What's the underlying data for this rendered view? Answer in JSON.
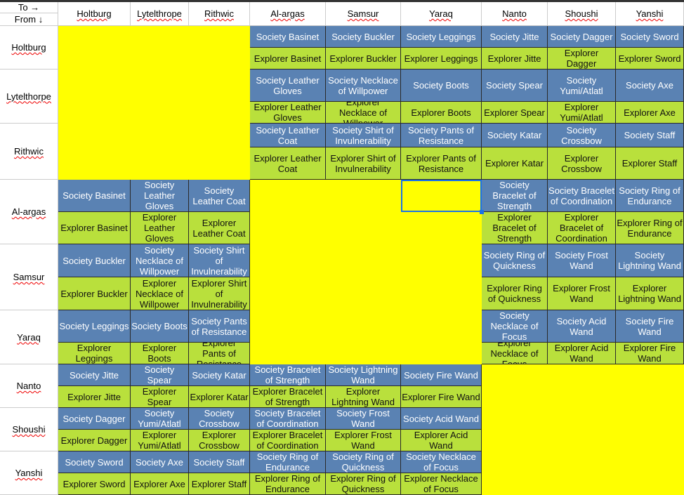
{
  "corner": {
    "to": "To →",
    "from": "From ↓"
  },
  "columns": [
    "Holtburg",
    "Lytelthrope",
    "Rithwic",
    "Al-argas",
    "Samsur",
    "Yaraq",
    "Nanto",
    "Shoushi",
    "Yanshi"
  ],
  "rows": [
    {
      "name": "Holtburg",
      "cells": [
        [
          null,
          null,
          null,
          "Society Basinet",
          "Society Buckler",
          "Society Leggings",
          "Society Jitte",
          "Society Dagger",
          "Society Sword"
        ],
        [
          null,
          null,
          null,
          "Explorer Basinet",
          "Explorer Buckler",
          "Explorer Leggings",
          "Explorer Jitte",
          "Explorer Dagger",
          "Explorer Sword"
        ]
      ]
    },
    {
      "name": "Lytelthorpe",
      "cells": [
        [
          null,
          null,
          null,
          "Society Leather Gloves",
          "Society Necklace of Willpower",
          "Society Boots",
          "Society Spear",
          "Society Yumi/Atlatl",
          "Society Axe"
        ],
        [
          null,
          null,
          null,
          "Explorer Leather Gloves",
          "Explorer Necklace of Willpower",
          "Explorer Boots",
          "Explorer Spear",
          "Explorer Yumi/Atlatl",
          "Explorer Axe"
        ]
      ]
    },
    {
      "name": "Rithwic",
      "cells": [
        [
          null,
          null,
          null,
          "Society Leather Coat",
          "Society Shirt of Invulnerability",
          "Society Pants of Resistance",
          "Society Katar",
          "Society Crossbow",
          "Society Staff"
        ],
        [
          null,
          null,
          null,
          "Explorer Leather Coat",
          "Explorer Shirt of Invulnerability",
          "Explorer Pants of Resistance",
          "Explorer Katar",
          "Explorer Crossbow",
          "Explorer Staff"
        ]
      ]
    },
    {
      "name": "Al-argas",
      "cells": [
        [
          "Society Basinet",
          "Society Leather Gloves",
          "Society Leather Coat",
          null,
          null,
          null,
          "Society Bracelet of Strength",
          "Society Bracelet of Coordination",
          "Society Ring of Endurance"
        ],
        [
          "Explorer Basinet",
          "Explorer Leather Gloves",
          "Explorer Leather Coat",
          null,
          null,
          null,
          "Explorer Bracelet of Strength",
          "Explorer Bracelet of Coordination",
          "Explorer Ring of Endurance"
        ]
      ]
    },
    {
      "name": "Samsur",
      "cells": [
        [
          "Society Buckler",
          "Society Necklace of Willpower",
          "Society Shirt of Invulnerability",
          null,
          null,
          null,
          "Society Ring of Quickness",
          "Society Frost Wand",
          "Society Lightning Wand"
        ],
        [
          "Explorer Buckler",
          "Explorer Necklace of Willpower",
          "Explorer Shirt of Invulnerability",
          null,
          null,
          null,
          "Explorer Ring of Quickness",
          "Explorer Frost Wand",
          "Explorer Lightning Wand"
        ]
      ]
    },
    {
      "name": "Yaraq",
      "cells": [
        [
          "Society Leggings",
          "Society Boots",
          "Society Pants of Resistance",
          null,
          null,
          null,
          "Society Necklace of Focus",
          "Society Acid Wand",
          "Society Fire Wand"
        ],
        [
          "Explorer Leggings",
          "Explorer Boots",
          "Explorer Pants of Resistance",
          null,
          null,
          null,
          "Explorer Necklace of Focus",
          "Explorer Acid Wand",
          "Explorer Fire Wand"
        ]
      ]
    },
    {
      "name": "Nanto",
      "cells": [
        [
          "Society Jitte",
          "Society Spear",
          "Society Katar",
          "Society Bracelet of Strength",
          "Society Lightning Wand",
          "Society Fire Wand",
          null,
          null,
          null
        ],
        [
          "Explorer Jitte",
          "Explorer Spear",
          "Explorer Katar",
          "Explorer Bracelet of Strength",
          "Explorer Lightning Wand",
          "Explorer Fire Wand",
          null,
          null,
          null
        ]
      ]
    },
    {
      "name": "Shoushi",
      "cells": [
        [
          "Society Dagger",
          "Society Yumi/Atlatl",
          "Society Crossbow",
          "Society Bracelet of Coordination",
          "Society Frost Wand",
          "Society Acid Wand",
          null,
          null,
          null
        ],
        [
          "Explorer Dagger",
          "Explorer Yumi/Atlatl",
          "Explorer Crossbow",
          "Explorer Bracelet of Coordination",
          "Explorer Frost Wand",
          "Explorer Acid Wand",
          null,
          null,
          null
        ]
      ]
    },
    {
      "name": "Yanshi",
      "cells": [
        [
          "Society Sword",
          "Society Axe",
          "Society Staff",
          "Society Ring of Endurance",
          "Society Ring of Quickness",
          "Society Necklace of Focus",
          null,
          null,
          null
        ],
        [
          "Explorer Sword",
          "Explorer Axe",
          "Explorer Staff",
          "Explorer Ring of Endurance",
          "Explorer Ring of Quickness",
          "Explorer Necklace of Focus",
          null,
          null,
          null
        ]
      ]
    }
  ],
  "selected_cell": {
    "row": "Al-argas",
    "column": "Yaraq"
  },
  "colors": {
    "society": "#5a82b3",
    "explorer": "#b9e03c",
    "empty": "#ffff00",
    "selection": "#1a73e8"
  }
}
